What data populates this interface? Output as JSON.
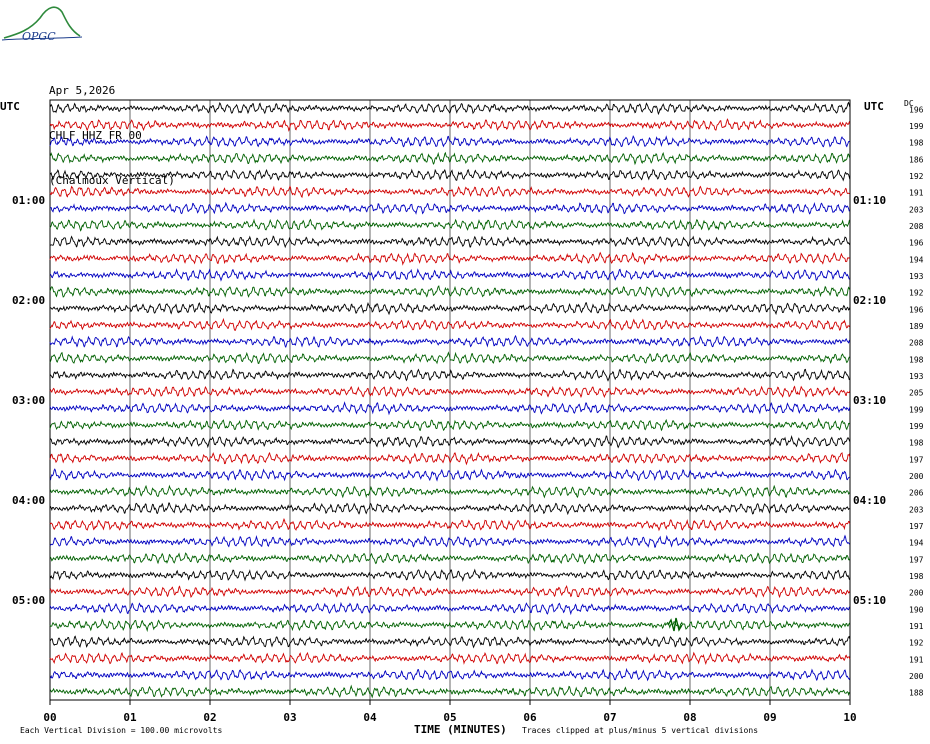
{
  "header": {
    "date": "Apr 5,2026",
    "station": "CHLF HHZ FR 00",
    "location": "(Chalmoux Vertical)",
    "logo_text": "OPGC"
  },
  "chart_data": {
    "type": "line",
    "title": "Apr 5,2026",
    "xlabel": "TIME (MINUTES)",
    "ylabel": "",
    "xlim": [
      0,
      10
    ],
    "x_ticks": [
      "00",
      "01",
      "02",
      "03",
      "04",
      "05",
      "06",
      "07",
      "08",
      "09",
      "10"
    ],
    "left_axis_title": "UTC",
    "right_axis_title": "UTC",
    "rms_header": "DC",
    "left_time_labels": [
      {
        "row": 6,
        "label": "01:00"
      },
      {
        "row": 12,
        "label": "02:00"
      },
      {
        "row": 18,
        "label": "03:00"
      },
      {
        "row": 24,
        "label": "04:00"
      },
      {
        "row": 30,
        "label": "05:00"
      }
    ],
    "right_time_labels": [
      {
        "row": 6,
        "label": "01:10"
      },
      {
        "row": 12,
        "label": "02:10"
      },
      {
        "row": 18,
        "label": "03:10"
      },
      {
        "row": 24,
        "label": "04:10"
      },
      {
        "row": 30,
        "label": "05:10"
      }
    ],
    "trace_colors": [
      "#000000",
      "#d00000",
      "#0000c0",
      "#006000"
    ],
    "row_offsets": [
      "196",
      "199",
      "198",
      "186",
      "192",
      "191",
      "203",
      "208",
      "196",
      "194",
      "193",
      "192",
      "196",
      "189",
      "208",
      "198",
      "193",
      "205",
      "199",
      "199",
      "198",
      "197",
      "200",
      "206",
      "203",
      "197",
      "194",
      "197",
      "198",
      "200",
      "190",
      "191",
      "192",
      "191",
      "200",
      "188"
    ],
    "scale_note": "Each Vertical Division =  100.00 microvolts",
    "clip_note": "Traces clipped at plus/minus 5 vertical divisions",
    "events": [
      {
        "row": 31,
        "minute": 7.8,
        "note": "spike"
      }
    ]
  }
}
